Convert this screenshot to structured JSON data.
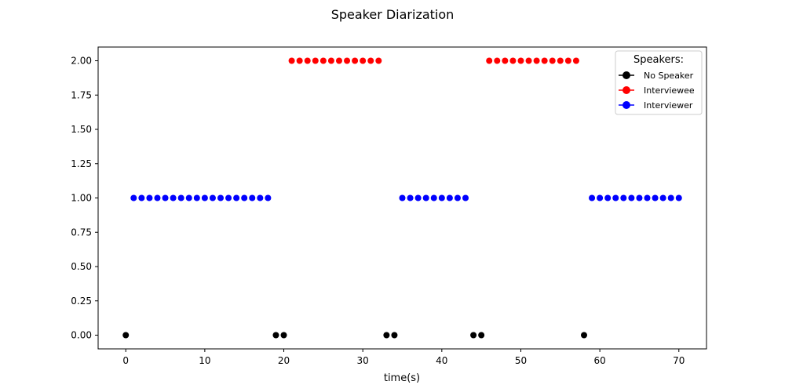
{
  "chart_data": {
    "type": "scatter",
    "title": "Speaker Diarization",
    "xlabel": "time(s)",
    "ylabel": "",
    "xlim": [
      -3.5,
      73.5
    ],
    "ylim": [
      -0.1,
      2.1
    ],
    "xticks": [
      0,
      10,
      20,
      30,
      40,
      50,
      60,
      70
    ],
    "yticks": [
      "0.00",
      "0.25",
      "0.50",
      "0.75",
      "1.00",
      "1.25",
      "1.50",
      "1.75",
      "2.00"
    ],
    "grid": false,
    "legend": {
      "title": "Speakers:",
      "placement": "top-right"
    },
    "series": [
      {
        "name": "No Speaker",
        "color": "#000000",
        "y": 0,
        "x": [
          0,
          19,
          20,
          33,
          34,
          44,
          45,
          58
        ]
      },
      {
        "name": "Interviewee",
        "color": "#ff0000",
        "y": 2,
        "x": [
          21,
          22,
          23,
          24,
          25,
          26,
          27,
          28,
          29,
          30,
          31,
          32,
          46,
          47,
          48,
          49,
          50,
          51,
          52,
          53,
          54,
          55,
          56,
          57
        ]
      },
      {
        "name": "Interviewer",
        "color": "#0000ff",
        "y": 1,
        "x": [
          1,
          2,
          3,
          4,
          5,
          6,
          7,
          8,
          9,
          10,
          11,
          12,
          13,
          14,
          15,
          16,
          17,
          18,
          35,
          36,
          37,
          38,
          39,
          40,
          41,
          42,
          43,
          59,
          60,
          61,
          62,
          63,
          64,
          65,
          66,
          67,
          68,
          69,
          70
        ]
      }
    ]
  }
}
